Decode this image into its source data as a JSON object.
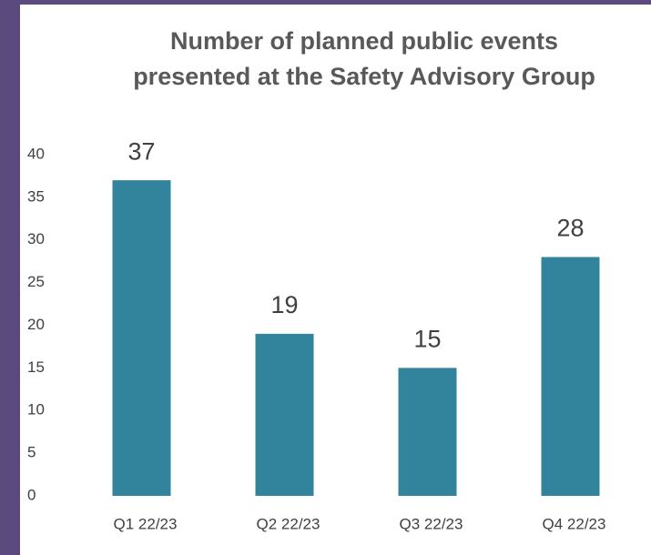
{
  "chart_data": {
    "type": "bar",
    "title": "Number of planned public events presented at the Safety Advisory Group",
    "categories": [
      "Q1 22/23",
      "Q2 22/23",
      "Q3 22/23",
      "Q4 22/23"
    ],
    "values": [
      37,
      19,
      15,
      28
    ],
    "color": "#31849b",
    "ylim": [
      0,
      40
    ],
    "yticks": [
      0,
      5,
      10,
      15,
      20,
      25,
      30,
      35,
      40
    ],
    "grid": false
  }
}
